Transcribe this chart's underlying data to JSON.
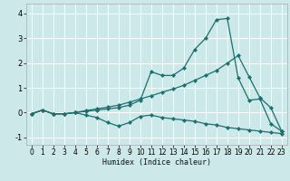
{
  "xlabel": "Humidex (Indice chaleur)",
  "xlim": [
    -0.5,
    23.5
  ],
  "ylim": [
    -1.3,
    4.4
  ],
  "xticks": [
    0,
    1,
    2,
    3,
    4,
    5,
    6,
    7,
    8,
    9,
    10,
    11,
    12,
    13,
    14,
    15,
    16,
    17,
    18,
    19,
    20,
    21,
    22,
    23
  ],
  "yticks": [
    -1,
    0,
    1,
    2,
    3,
    4
  ],
  "bg_color": "#cde8e8",
  "line_color": "#1a7070",
  "grid_color": "#ffffff",
  "series": [
    {
      "x": [
        0,
        1,
        2,
        3,
        4,
        5,
        6,
        7,
        8,
        9,
        10,
        11,
        12,
        13,
        14,
        15,
        16,
        17,
        18,
        19,
        20,
        21,
        22,
        23
      ],
      "y": [
        -0.05,
        0.1,
        -0.05,
        -0.05,
        0.0,
        -0.1,
        -0.2,
        -0.4,
        -0.55,
        -0.4,
        -0.15,
        -0.1,
        -0.2,
        -0.25,
        -0.3,
        -0.35,
        -0.45,
        -0.5,
        -0.6,
        -0.65,
        -0.7,
        -0.75,
        -0.8,
        -0.85
      ]
    },
    {
      "x": [
        0,
        1,
        2,
        3,
        4,
        5,
        6,
        7,
        8,
        9,
        10,
        11,
        12,
        13,
        14,
        15,
        16,
        17,
        18,
        19,
        20,
        21,
        22,
        23
      ],
      "y": [
        -0.05,
        0.1,
        -0.05,
        -0.05,
        0.0,
        0.05,
        0.1,
        0.15,
        0.2,
        0.3,
        0.5,
        1.65,
        1.5,
        1.5,
        1.8,
        2.55,
        3.0,
        3.75,
        3.8,
        1.4,
        0.5,
        0.55,
        -0.45,
        -0.75
      ]
    },
    {
      "x": [
        0,
        1,
        2,
        3,
        4,
        5,
        6,
        7,
        8,
        9,
        10,
        11,
        12,
        13,
        14,
        15,
        16,
        17,
        18,
        19,
        20,
        21,
        22,
        23
      ],
      "y": [
        -0.05,
        0.1,
        -0.05,
        -0.05,
        0.0,
        0.08,
        0.15,
        0.22,
        0.3,
        0.42,
        0.55,
        0.68,
        0.82,
        0.95,
        1.1,
        1.3,
        1.5,
        1.7,
        2.0,
        2.3,
        1.45,
        0.6,
        0.2,
        -0.75
      ]
    }
  ]
}
